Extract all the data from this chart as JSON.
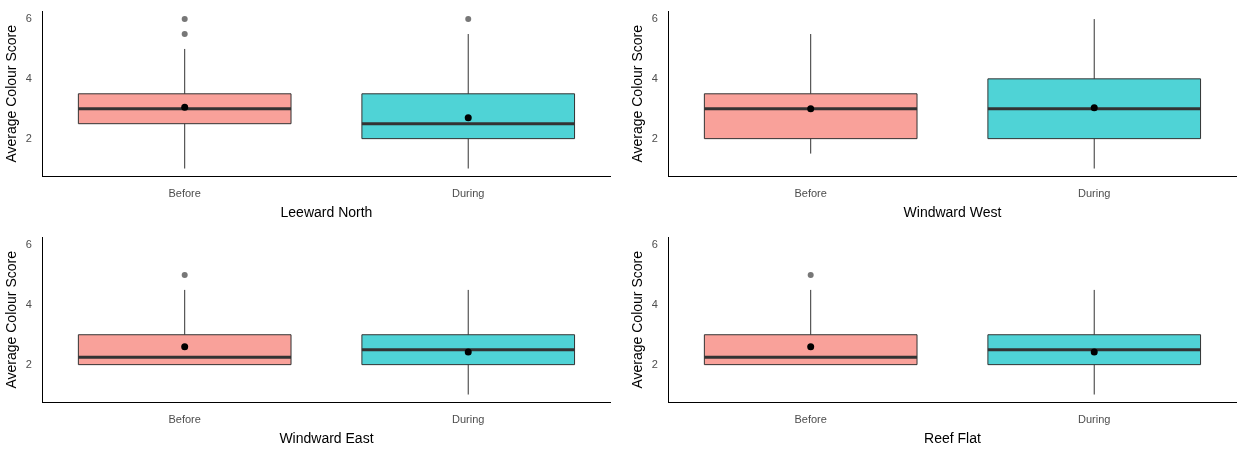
{
  "chart_data": [
    {
      "type": "box",
      "categories": [
        "Before",
        "During"
      ],
      "xlabel": "Leeward North",
      "ylabel": "Average Colour Score",
      "ylim": [
        0.75,
        6.25
      ],
      "yticks": [
        2,
        4,
        6
      ],
      "colors": [
        "#f9a19a",
        "#4fd3d6"
      ],
      "boxes": [
        {
          "low": 1,
          "q1": 2.5,
          "median": 3,
          "q3": 3.5,
          "high": 5,
          "mean": 3.05,
          "outliers": [
            5.5,
            6
          ]
        },
        {
          "low": 1,
          "q1": 2,
          "median": 2.5,
          "q3": 3.5,
          "high": 5.5,
          "mean": 2.7,
          "outliers": [
            6
          ]
        }
      ]
    },
    {
      "type": "box",
      "categories": [
        "Before",
        "During"
      ],
      "xlabel": "Windward West",
      "ylabel": "Average Colour Score",
      "ylim": [
        0.75,
        6.25
      ],
      "yticks": [
        2,
        4,
        6
      ],
      "colors": [
        "#f9a19a",
        "#4fd3d6"
      ],
      "boxes": [
        {
          "low": 1.5,
          "q1": 2,
          "median": 3,
          "q3": 3.5,
          "high": 5.5,
          "mean": 3
        },
        {
          "low": 1,
          "q1": 2,
          "median": 3,
          "q3": 4,
          "high": 6,
          "mean": 3.03
        }
      ]
    },
    {
      "type": "box",
      "categories": [
        "Before",
        "During"
      ],
      "xlabel": "Windward East",
      "ylabel": "Average Colour Score",
      "ylim": [
        0.75,
        6.25
      ],
      "yticks": [
        2,
        4,
        6
      ],
      "colors": [
        "#f9a19a",
        "#4fd3d6"
      ],
      "boxes": [
        {
          "low": 2,
          "q1": 2,
          "median": 2.25,
          "q3": 3,
          "high": 4.5,
          "mean": 2.6,
          "outliers": [
            5
          ]
        },
        {
          "low": 1,
          "q1": 2,
          "median": 2.5,
          "q3": 3,
          "high": 4.5,
          "mean": 2.42
        }
      ]
    },
    {
      "type": "box",
      "categories": [
        "Before",
        "During"
      ],
      "xlabel": "Reef Flat",
      "ylabel": "Average Colour Score",
      "ylim": [
        0.75,
        6.25
      ],
      "yticks": [
        2,
        4,
        6
      ],
      "colors": [
        "#f9a19a",
        "#4fd3d6"
      ],
      "boxes": [
        {
          "low": 2,
          "q1": 2,
          "median": 2.25,
          "q3": 3,
          "high": 4.5,
          "mean": 2.6,
          "outliers": [
            5
          ]
        },
        {
          "low": 1,
          "q1": 2,
          "median": 2.5,
          "q3": 3,
          "high": 4.5,
          "mean": 2.42
        }
      ]
    }
  ]
}
